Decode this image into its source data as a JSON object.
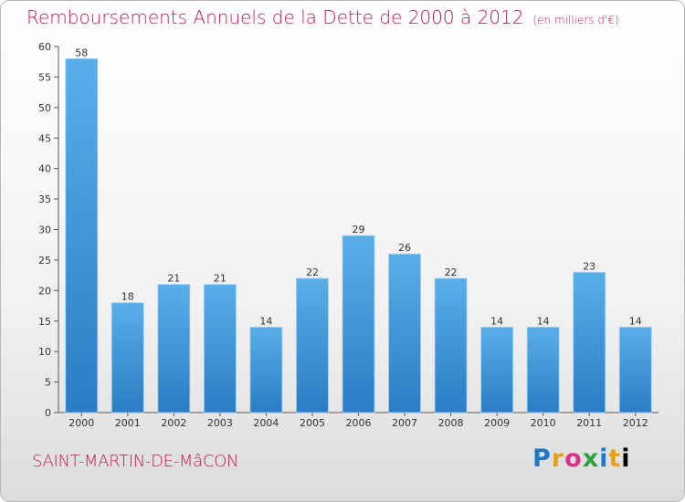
{
  "header": {
    "title": "Remboursements Annuels de la Dette de 2000 à 2012",
    "unit": "(en milliers d'€)"
  },
  "footer": {
    "commune": "SAINT-MARTIN-DE-MâCON",
    "logo_letters": [
      "P",
      "r",
      "o",
      "x",
      "i",
      "t",
      "i"
    ]
  },
  "colors": {
    "title": "#c2185b",
    "bar_top": "#5aaee8",
    "bar_bottom": "#2a7dc4"
  },
  "chart_data": {
    "type": "bar",
    "categories": [
      "2000",
      "2001",
      "2002",
      "2003",
      "2004",
      "2005",
      "2006",
      "2007",
      "2008",
      "2009",
      "2010",
      "2011",
      "2012"
    ],
    "values": [
      58,
      18,
      21,
      21,
      14,
      22,
      29,
      26,
      22,
      14,
      14,
      23,
      14
    ],
    "ylim": [
      0,
      60
    ],
    "yticks": [
      0,
      5,
      10,
      15,
      20,
      25,
      30,
      35,
      40,
      45,
      50,
      55,
      60
    ],
    "grid": false,
    "legend": "none"
  }
}
